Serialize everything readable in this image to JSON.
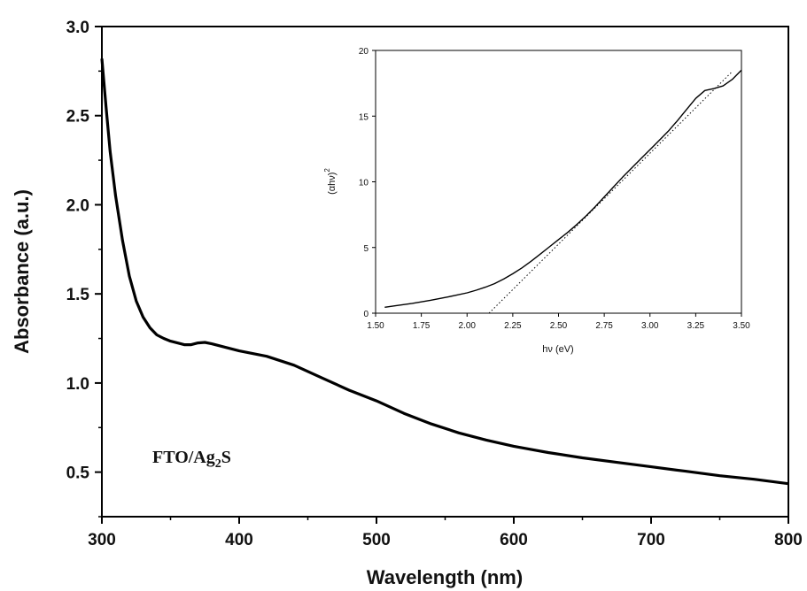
{
  "chart_data": [
    {
      "type": "line",
      "title": "",
      "xlabel": "Wavelength (nm)",
      "ylabel": "Absorbance (a.u.)",
      "xlim": [
        300,
        800
      ],
      "ylim": [
        0.25,
        3.0
      ],
      "xticks": [
        "300",
        "400",
        "500",
        "600",
        "700",
        "800"
      ],
      "yticks": [
        "0.5",
        "1.0",
        "1.5",
        "2.0",
        "2.5",
        "3.0"
      ],
      "annotation": {
        "prefix": "FTO/Ag",
        "subscript": "2",
        "suffix": "S"
      },
      "series": [
        {
          "x": [
            300,
            303,
            306,
            310,
            315,
            320,
            325,
            330,
            335,
            340,
            345,
            350,
            355,
            360,
            365,
            370,
            375,
            380,
            390,
            400,
            420,
            440,
            460,
            480,
            500,
            520,
            540,
            560,
            580,
            600,
            625,
            650,
            675,
            700,
            725,
            750,
            775,
            800
          ],
          "y": [
            2.82,
            2.55,
            2.3,
            2.05,
            1.8,
            1.6,
            1.46,
            1.37,
            1.31,
            1.27,
            1.25,
            1.235,
            1.225,
            1.215,
            1.215,
            1.225,
            1.228,
            1.22,
            1.2,
            1.18,
            1.15,
            1.1,
            1.03,
            0.96,
            0.9,
            0.83,
            0.77,
            0.72,
            0.68,
            0.645,
            0.61,
            0.58,
            0.555,
            0.53,
            0.505,
            0.48,
            0.46,
            0.435
          ]
        }
      ]
    },
    {
      "type": "line",
      "title": "",
      "xlabel": "hν (eV)",
      "ylabel": {
        "base": "(αhν)",
        "sup": "2"
      },
      "xlim": [
        1.5,
        3.5
      ],
      "ylim": [
        0,
        20
      ],
      "xticks": [
        "1.50",
        "1.75",
        "2.00",
        "2.25",
        "2.50",
        "2.75",
        "3.00",
        "3.25",
        "3.50"
      ],
      "yticks": [
        "0",
        "5",
        "10",
        "15",
        "20"
      ],
      "series": [
        {
          "x": [
            1.55,
            1.6,
            1.7,
            1.8,
            1.9,
            2.0,
            2.05,
            2.1,
            2.15,
            2.2,
            2.25,
            2.3,
            2.35,
            2.4,
            2.45,
            2.5,
            2.55,
            2.6,
            2.65,
            2.7,
            2.75,
            2.8,
            2.85,
            2.9,
            2.95,
            3.0,
            3.05,
            3.1,
            3.15,
            3.2,
            3.25,
            3.3,
            3.35,
            3.4,
            3.45,
            3.5
          ],
          "y": [
            0.45,
            0.55,
            0.75,
            0.98,
            1.25,
            1.55,
            1.75,
            1.98,
            2.25,
            2.6,
            3.0,
            3.45,
            3.95,
            4.5,
            5.05,
            5.6,
            6.15,
            6.75,
            7.4,
            8.1,
            8.85,
            9.6,
            10.35,
            11.05,
            11.75,
            12.45,
            13.15,
            13.85,
            14.65,
            15.5,
            16.35,
            16.95,
            17.1,
            17.3,
            17.8,
            18.5
          ]
        },
        {
          "style": "dotted",
          "x": [
            2.12,
            3.45
          ],
          "y": [
            0,
            18.4
          ]
        }
      ]
    }
  ]
}
